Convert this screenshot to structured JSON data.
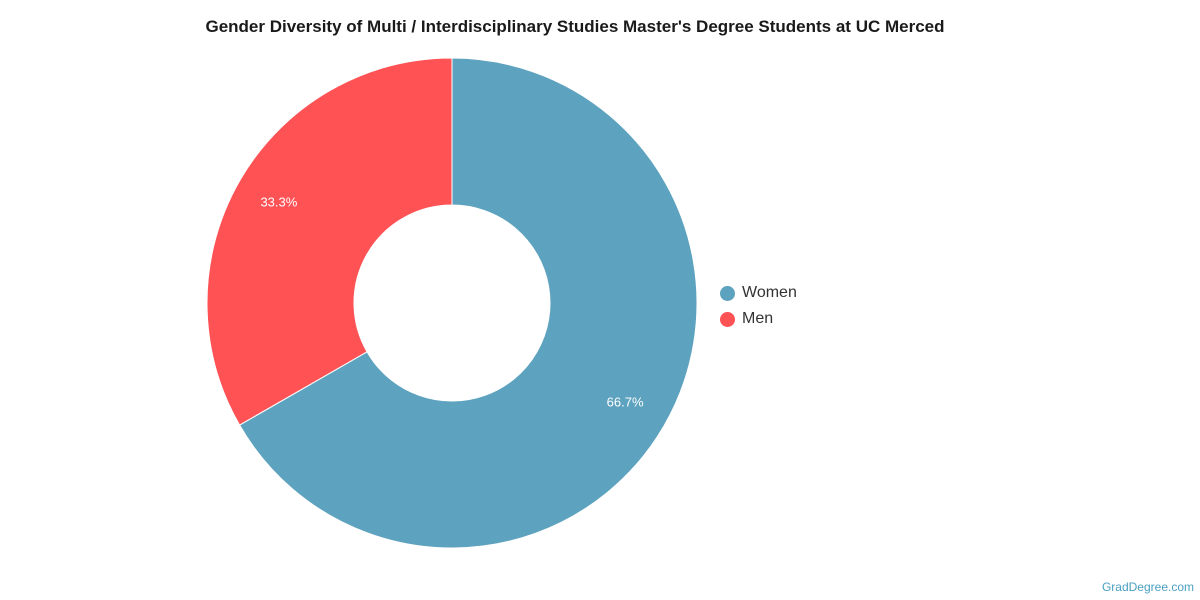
{
  "chart_data": {
    "type": "pie",
    "title": "Gender Diversity of Multi / Interdisciplinary Studies Master's Degree Students at UC Merced",
    "categories": [
      "Women",
      "Men"
    ],
    "values": [
      66.7,
      33.3
    ],
    "data_labels": [
      "66.7%",
      "33.3%"
    ],
    "colors": [
      "#5da2be",
      "#fe5255"
    ],
    "donut": true,
    "legend_position": "right"
  },
  "legend": {
    "items": [
      {
        "label": "Women",
        "color": "#5da2be"
      },
      {
        "label": "Men",
        "color": "#fe5255"
      }
    ]
  },
  "footer": {
    "credit": "GradDegree.com"
  }
}
